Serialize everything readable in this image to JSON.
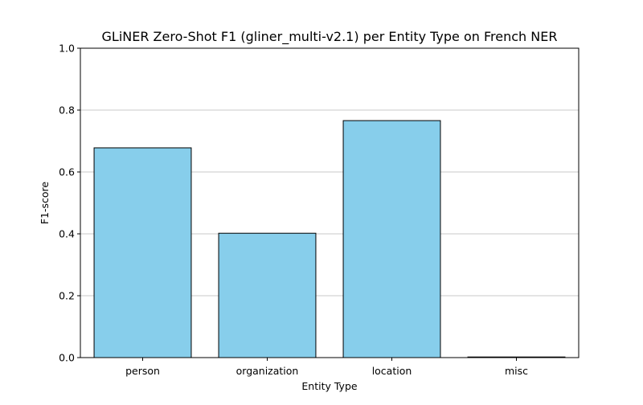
{
  "chart_data": {
    "type": "bar",
    "title": "GLiNER Zero-Shot F1 (gliner_multi-v2.1) per Entity Type on French NER",
    "xlabel": "Entity Type",
    "ylabel": "F1-score",
    "categories": [
      "person",
      "organization",
      "location",
      "misc"
    ],
    "values": [
      0.678,
      0.402,
      0.766,
      0.002
    ],
    "ylim": [
      0,
      1.0
    ],
    "yticks": [
      "0.0",
      "0.2",
      "0.4",
      "0.6",
      "0.8",
      "1.0"
    ],
    "grid": "horizontal",
    "legend": "none",
    "bar_color": "#87CEEB",
    "bar_edge_color": "#000000",
    "grid_color": "#c8c8c8"
  }
}
